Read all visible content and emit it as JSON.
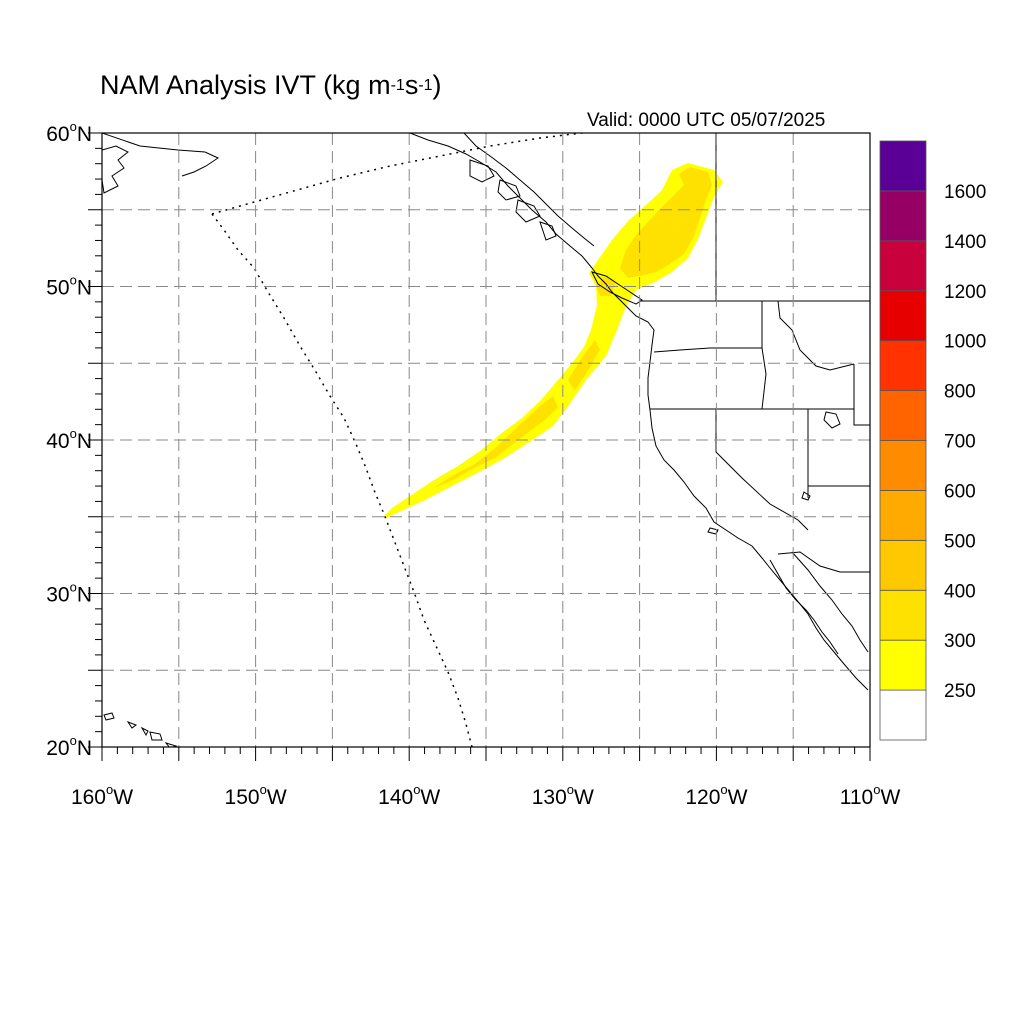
{
  "title": {
    "main": "NAM Analysis IVT (kg m",
    "sup1": "-1",
    "mid": "s",
    "sup2": "-1",
    "end": ")"
  },
  "valid_label": "Valid: 0000 UTC 05/07/2025",
  "map": {
    "projection": "cylindrical equidistant",
    "lon_range": [
      -160,
      -110
    ],
    "lat_range": [
      20,
      60
    ],
    "gridlines": "dashed gray every 5 degrees",
    "lat_ticks": [
      {
        "value": 60,
        "deg": "60",
        "hemi": "N"
      },
      {
        "value": 50,
        "deg": "50",
        "hemi": "N"
      },
      {
        "value": 40,
        "deg": "40",
        "hemi": "N"
      },
      {
        "value": 30,
        "deg": "30",
        "hemi": "N"
      },
      {
        "value": 20,
        "deg": "20",
        "hemi": "N"
      }
    ],
    "lon_ticks": [
      {
        "value": -160,
        "deg": "160",
        "hemi": "W"
      },
      {
        "value": -150,
        "deg": "150",
        "hemi": "W"
      },
      {
        "value": -140,
        "deg": "140",
        "hemi": "W"
      },
      {
        "value": -130,
        "deg": "130",
        "hemi": "W"
      },
      {
        "value": -120,
        "deg": "120",
        "hemi": "W"
      },
      {
        "value": -110,
        "deg": "110",
        "hemi": "W"
      }
    ]
  },
  "chart_data": {
    "type": "heatmap",
    "field": "IVT",
    "units": "kg m-1 s-1",
    "colorbar": {
      "levels": [
        "250",
        "300",
        "400",
        "500",
        "600",
        "700",
        "800",
        "1000",
        "1200",
        "1400",
        "1600"
      ],
      "colors": [
        "#ffffff",
        "#ffff00",
        "#ffe100",
        "#ffc800",
        "#ffaa00",
        "#ff8c00",
        "#ff6400",
        "#ff3200",
        "#e60000",
        "#c8003c",
        "#960064",
        "#5a0096"
      ]
    },
    "features": [
      {
        "name": "atmospheric river",
        "ivt_min": 250,
        "ivt_max": 400,
        "axis_path_lonlat": [
          [
            -141.5,
            35.0
          ],
          [
            -137,
            37.5
          ],
          [
            -133,
            40.2
          ],
          [
            -130.5,
            42.5
          ],
          [
            -128.5,
            46.0
          ],
          [
            -126.5,
            49.5
          ],
          [
            -125.5,
            52.5
          ],
          [
            -122.5,
            57.0
          ]
        ]
      }
    ]
  }
}
